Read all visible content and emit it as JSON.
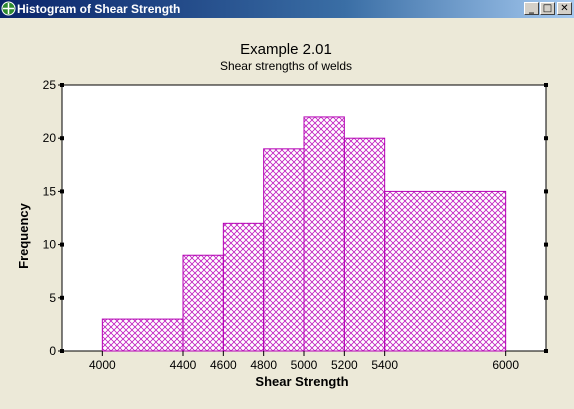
{
  "window": {
    "title": "Histogram of Shear Strength",
    "minimize_glyph": "_",
    "maximize_glyph": "□",
    "close_glyph": "✕",
    "icon": "minitab-graph-icon"
  },
  "colors": {
    "bar_stroke": "#b400b4",
    "bar_hatch": "#c020c0",
    "plot_background": "#ffffff",
    "window_background": "#ece9d8"
  },
  "chart_data": {
    "type": "bar",
    "title": "Example 2.01",
    "subtitle": "Shear strengths of welds",
    "xlabel": "Shear Strength",
    "ylabel": "Frequency",
    "xlim": [
      3800,
      6200
    ],
    "ylim": [
      0,
      25
    ],
    "grid": false,
    "bins": [
      {
        "start": 4000,
        "end": 4400,
        "value": 3
      },
      {
        "start": 4400,
        "end": 4600,
        "value": 9
      },
      {
        "start": 4600,
        "end": 4800,
        "value": 12
      },
      {
        "start": 4800,
        "end": 5000,
        "value": 19
      },
      {
        "start": 5000,
        "end": 5200,
        "value": 22
      },
      {
        "start": 5200,
        "end": 5400,
        "value": 20
      },
      {
        "start": 5400,
        "end": 6000,
        "value": 15
      }
    ],
    "x_ticks": [
      "4000",
      "4400",
      "4600",
      "4800",
      "5000",
      "5200",
      "5400",
      "6000"
    ],
    "y_ticks": [
      "0",
      "5",
      "10",
      "15",
      "20",
      "25"
    ]
  }
}
